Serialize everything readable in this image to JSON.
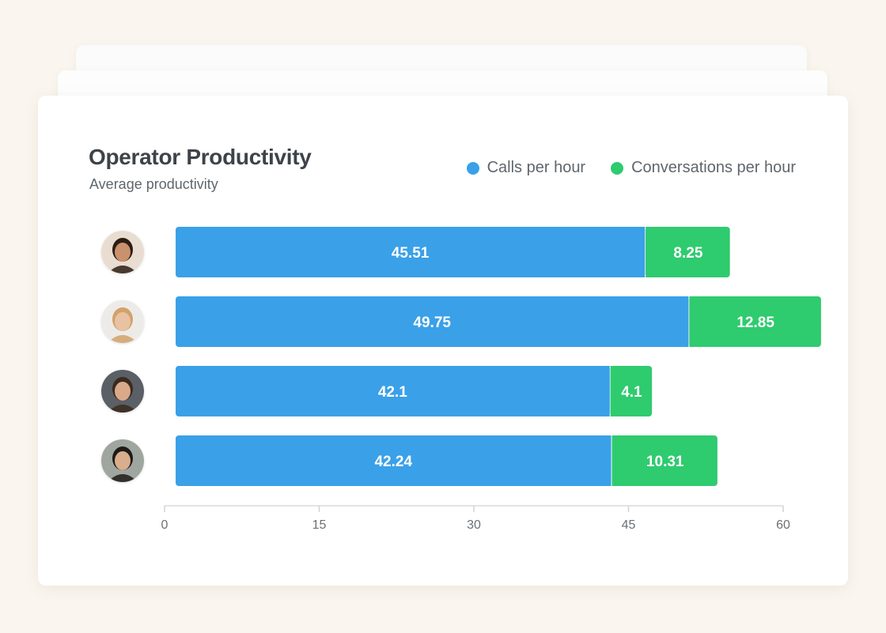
{
  "header": {
    "title": "Operator Productivity",
    "subtitle": "Average productivity"
  },
  "legend": [
    {
      "label": "Calls per hour",
      "color": "#3aa0e8"
    },
    {
      "label": "Conversations per hour",
      "color": "#2fcb6f"
    }
  ],
  "operators": [
    {
      "avatar_icon": "operator-avatar-1-icon",
      "skin": "#c9916c",
      "hair": "#2b1d14",
      "bg": "#e9ddd2"
    },
    {
      "avatar_icon": "operator-avatar-2-icon",
      "skin": "#e8c2a2",
      "hair": "#d2a26a",
      "bg": "#ecebe8"
    },
    {
      "avatar_icon": "operator-avatar-3-icon",
      "skin": "#d9a98a",
      "hair": "#3b2a1e",
      "bg": "#5b5f66"
    },
    {
      "avatar_icon": "operator-avatar-4-icon",
      "skin": "#d8ae8c",
      "hair": "#1e1a17",
      "bg": "#9fa6a0"
    }
  ],
  "chart_data": {
    "type": "bar",
    "orientation": "horizontal",
    "stacked": true,
    "title": "Operator Productivity",
    "subtitle": "Average productivity",
    "xlabel": "",
    "ylabel": "",
    "xlim": [
      0,
      60
    ],
    "x_ticks": [
      0,
      15,
      30,
      45,
      60
    ],
    "grid": false,
    "legend_position": "top-right",
    "series": [
      {
        "name": "Calls per hour",
        "color": "#3aa0e8",
        "values": [
          45.51,
          49.75,
          42.1,
          42.24
        ]
      },
      {
        "name": "Conversations per hour",
        "color": "#2fcb6f",
        "values": [
          8.25,
          12.85,
          4.1,
          10.31
        ]
      }
    ]
  }
}
